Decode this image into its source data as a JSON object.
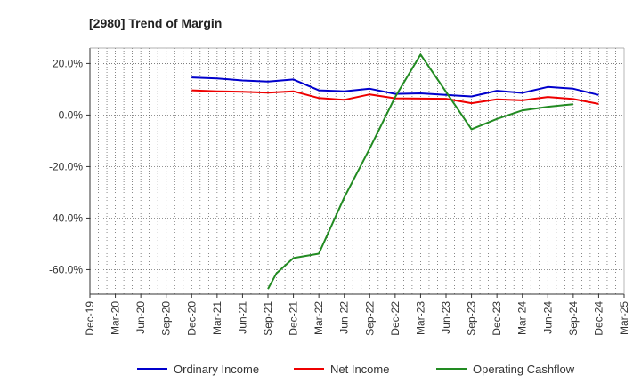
{
  "chart_data": {
    "type": "line",
    "title": "[2980]  Trend of Margin",
    "xlabel": "",
    "ylabel": "",
    "categories": [
      "Dec-19",
      "Mar-20",
      "Jun-20",
      "Sep-20",
      "Dec-20",
      "Mar-21",
      "Jun-21",
      "Sep-21",
      "Dec-21",
      "Mar-22",
      "Jun-22",
      "Sep-22",
      "Dec-22",
      "Mar-23",
      "Jun-23",
      "Sep-23",
      "Dec-23",
      "Mar-24",
      "Jun-24",
      "Sep-24",
      "Dec-24",
      "Mar-25"
    ],
    "ylim": [
      -69.5,
      26
    ],
    "yticks": [
      20,
      0,
      -20,
      -40,
      -60
    ],
    "ytick_labels": [
      "20.0%",
      "0.0%",
      "-20.0%",
      "-40.0%",
      "-60.0%"
    ],
    "grid": true,
    "legend_position": "bottom",
    "series": [
      {
        "name": "Ordinary Income",
        "color": "#0000cc",
        "values": [
          null,
          null,
          null,
          null,
          14.6,
          14.2,
          13.4,
          13.0,
          13.8,
          9.6,
          9.2,
          10.2,
          8.2,
          8.4,
          7.8,
          7.2,
          9.4,
          8.6,
          10.9,
          10.2,
          7.8,
          null
        ]
      },
      {
        "name": "Net Income",
        "color": "#ee0000",
        "values": [
          null,
          null,
          null,
          null,
          9.6,
          9.2,
          9.0,
          8.7,
          9.2,
          6.6,
          5.9,
          8.0,
          6.5,
          6.4,
          6.3,
          4.6,
          6.1,
          5.7,
          7.0,
          6.2,
          4.3,
          null
        ]
      },
      {
        "name": "Operating Cashflow",
        "color": "#228b22",
        "values": [
          null,
          null,
          null,
          null,
          null,
          null,
          null,
          -67.5,
          -55.5,
          -53.8,
          -32.0,
          -13.0,
          7.0,
          23.5,
          9.0,
          -5.5,
          -1.5,
          1.8,
          3.2,
          4.2,
          null,
          null
        ],
        "extra_points": [
          {
            "after_index": 7,
            "x_offset": 0.33,
            "y": -61.5
          }
        ]
      }
    ]
  }
}
